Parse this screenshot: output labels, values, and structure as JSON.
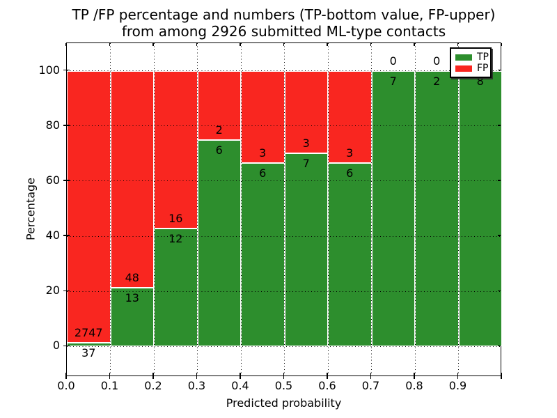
{
  "title": {
    "line1": "TP /FP percentage and numbers (TP-bottom value, FP-upper)",
    "line2": "from among 2926 submitted ML-type contacts"
  },
  "axes": {
    "xlabel": "Predicted probability",
    "ylabel": "Percentage",
    "xtick_labels": [
      "0.0",
      "0.1",
      "0.2",
      "0.3",
      "0.4",
      "0.5",
      "0.6",
      "0.7",
      "0.8",
      "0.9"
    ],
    "xtick_values": [
      0.0,
      0.1,
      0.2,
      0.3,
      0.4,
      0.5,
      0.6,
      0.7,
      0.8,
      0.9
    ],
    "ytick_labels": [
      "0",
      "20",
      "40",
      "60",
      "80",
      "100"
    ],
    "ytick_values": [
      0,
      20,
      40,
      60,
      80,
      100
    ]
  },
  "legend": {
    "items": [
      {
        "label": "TP",
        "color": "#2d8e2d"
      },
      {
        "label": "FP",
        "color": "#f92620"
      }
    ]
  },
  "colors": {
    "tp": "#2d8e2d",
    "fp": "#f92620",
    "grid": "#000000"
  },
  "chart_data": {
    "type": "bar",
    "stacked": true,
    "title": "TP /FP percentage and numbers (TP-bottom value, FP-upper) from among 2926 submitted ML-type contacts",
    "xlabel": "Predicted probability",
    "ylabel": "Percentage",
    "total_contacts": 2926,
    "xlim": [
      0.0,
      1.0
    ],
    "ylim": [
      -11,
      110
    ],
    "grid": "dotted",
    "legend_position": "upper right",
    "bin_edges": [
      0.0,
      0.1,
      0.2,
      0.3,
      0.4,
      0.5,
      0.6,
      0.7,
      0.8,
      0.9,
      1.0
    ],
    "series": [
      {
        "name": "TP",
        "color": "#2d8e2d",
        "counts": [
          37,
          13,
          12,
          6,
          6,
          7,
          6,
          7,
          2,
          8
        ]
      },
      {
        "name": "FP",
        "color": "#f92620",
        "counts": [
          2747,
          48,
          16,
          2,
          3,
          3,
          3,
          0,
          0,
          0
        ]
      }
    ],
    "tp_pct": [
      1.33,
      21.31,
      42.86,
      75.0,
      66.67,
      70.0,
      66.67,
      100.0,
      100.0,
      100.0
    ]
  }
}
